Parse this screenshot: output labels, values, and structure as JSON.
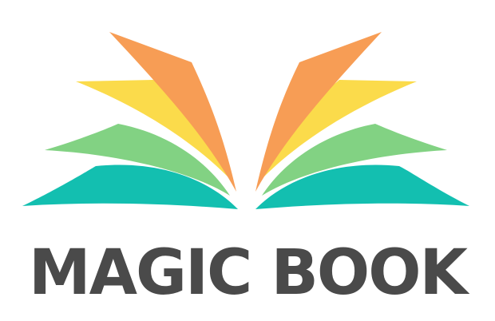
{
  "logo": {
    "wordmark": "MAGIC BOOK",
    "icon": "open-book-icon",
    "colors": {
      "text": "#4a4a4a",
      "orange": "#f79d55",
      "yellow": "#fbdb4b",
      "green": "#82d283",
      "teal": "#13bfb0"
    }
  }
}
